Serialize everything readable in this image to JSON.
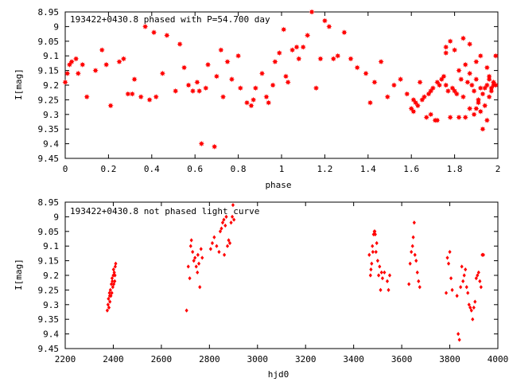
{
  "chart_data": [
    {
      "type": "scatter",
      "title": "193422+0430.8 phased with P=54.700 day",
      "xlabel": "phase",
      "ylabel": "I[mag]",
      "xlim": [
        0,
        2
      ],
      "ylim": [
        8.95,
        9.45
      ],
      "y_inverted": true,
      "marker": "filled-star",
      "color": "#ff0000",
      "xticks": [
        "0",
        "0.2",
        "0.4",
        "0.6",
        "0.8",
        "1",
        "1.2",
        "1.4",
        "1.6",
        "1.8",
        "2"
      ],
      "yticks": [
        "8.95",
        "9",
        "9.05",
        "9.1",
        "9.15",
        "9.2",
        "9.25",
        "9.3",
        "9.35",
        "9.4",
        "9.45"
      ],
      "points": [
        [
          0.0,
          9.19
        ],
        [
          0.01,
          9.16
        ],
        [
          0.02,
          9.13
        ],
        [
          0.03,
          9.12
        ],
        [
          0.05,
          9.11
        ],
        [
          0.06,
          9.16
        ],
        [
          0.08,
          9.13
        ],
        [
          0.1,
          9.24
        ],
        [
          0.14,
          9.15
        ],
        [
          0.17,
          9.08
        ],
        [
          0.19,
          9.13
        ],
        [
          0.21,
          9.27
        ],
        [
          0.25,
          9.12
        ],
        [
          0.27,
          9.11
        ],
        [
          0.29,
          9.23
        ],
        [
          0.31,
          9.23
        ],
        [
          0.32,
          9.18
        ],
        [
          0.35,
          9.24
        ],
        [
          0.37,
          9.0
        ],
        [
          0.39,
          9.25
        ],
        [
          0.41,
          9.02
        ],
        [
          0.42,
          9.24
        ],
        [
          0.45,
          9.16
        ],
        [
          0.47,
          9.03
        ],
        [
          0.51,
          9.22
        ],
        [
          0.53,
          9.06
        ],
        [
          0.55,
          9.14
        ],
        [
          0.57,
          9.2
        ],
        [
          0.59,
          9.22
        ],
        [
          0.61,
          9.19
        ],
        [
          0.62,
          9.22
        ],
        [
          0.63,
          9.4
        ],
        [
          0.65,
          9.21
        ],
        [
          0.66,
          9.13
        ],
        [
          0.69,
          9.41
        ],
        [
          0.7,
          9.17
        ],
        [
          0.72,
          9.08
        ],
        [
          0.73,
          9.24
        ],
        [
          0.75,
          9.12
        ],
        [
          0.77,
          9.18
        ],
        [
          0.8,
          9.1
        ],
        [
          0.81,
          9.21
        ],
        [
          0.84,
          9.26
        ],
        [
          0.86,
          9.27
        ],
        [
          0.87,
          9.25
        ],
        [
          0.88,
          9.21
        ],
        [
          0.91,
          9.16
        ],
        [
          0.93,
          9.24
        ],
        [
          0.94,
          9.26
        ],
        [
          0.96,
          9.2
        ],
        [
          0.97,
          9.12
        ],
        [
          0.99,
          9.09
        ],
        [
          1.01,
          9.01
        ],
        [
          1.02,
          9.17
        ],
        [
          1.03,
          9.19
        ],
        [
          1.05,
          9.08
        ],
        [
          1.07,
          9.07
        ],
        [
          1.08,
          9.11
        ],
        [
          1.1,
          9.07
        ],
        [
          1.12,
          9.03
        ],
        [
          1.14,
          8.95
        ],
        [
          1.16,
          9.21
        ],
        [
          1.18,
          9.11
        ],
        [
          1.2,
          8.98
        ],
        [
          1.22,
          9.0
        ],
        [
          1.24,
          9.11
        ],
        [
          1.26,
          9.1
        ],
        [
          1.29,
          9.02
        ],
        [
          1.32,
          9.11
        ],
        [
          1.35,
          9.14
        ],
        [
          1.39,
          9.16
        ],
        [
          1.41,
          9.26
        ],
        [
          1.43,
          9.19
        ],
        [
          1.46,
          9.12
        ],
        [
          1.49,
          9.24
        ],
        [
          1.52,
          9.2
        ],
        [
          1.55,
          9.18
        ],
        [
          1.58,
          9.23
        ],
        [
          1.61,
          9.25
        ],
        [
          1.64,
          9.19
        ],
        [
          1.67,
          9.31
        ],
        [
          1.69,
          9.3
        ],
        [
          1.71,
          9.32
        ],
        [
          1.72,
          9.32
        ],
        [
          1.74,
          9.18
        ],
        [
          1.76,
          9.09
        ],
        [
          1.78,
          9.31
        ],
        [
          1.8,
          9.08
        ],
        [
          1.82,
          9.31
        ],
        [
          1.83,
          9.18
        ],
        [
          1.85,
          9.31
        ],
        [
          1.87,
          9.28
        ],
        [
          1.89,
          9.3
        ],
        [
          1.9,
          9.28
        ],
        [
          1.91,
          9.26
        ],
        [
          1.92,
          9.29
        ],
        [
          1.93,
          9.35
        ],
        [
          1.94,
          9.27
        ],
        [
          1.95,
          9.32
        ],
        [
          1.96,
          9.24
        ],
        [
          1.97,
          9.22
        ],
        [
          1.98,
          9.2
        ],
        [
          1.99,
          9.1
        ],
        [
          1.6,
          9.28
        ],
        [
          1.61,
          9.29
        ],
        [
          1.62,
          9.26
        ],
        [
          1.63,
          9.27
        ],
        [
          1.65,
          9.25
        ],
        [
          1.66,
          9.24
        ],
        [
          1.68,
          9.23
        ],
        [
          1.69,
          9.22
        ],
        [
          1.7,
          9.21
        ],
        [
          1.72,
          9.19
        ],
        [
          1.73,
          9.2
        ],
        [
          1.75,
          9.17
        ],
        [
          1.76,
          9.2
        ],
        [
          1.77,
          9.22
        ],
        [
          1.79,
          9.21
        ],
        [
          1.8,
          9.22
        ],
        [
          1.81,
          9.23
        ],
        [
          1.82,
          9.15
        ],
        [
          1.84,
          9.24
        ],
        [
          1.85,
          9.13
        ],
        [
          1.86,
          9.19
        ],
        [
          1.87,
          9.16
        ],
        [
          1.88,
          9.2
        ],
        [
          1.89,
          9.22
        ],
        [
          1.9,
          9.18
        ],
        [
          1.91,
          9.25
        ],
        [
          1.92,
          9.21
        ],
        [
          1.93,
          9.23
        ],
        [
          1.94,
          9.21
        ],
        [
          1.95,
          9.2
        ],
        [
          1.96,
          9.18
        ],
        [
          1.97,
          9.21
        ],
        [
          1.98,
          9.19
        ],
        [
          1.99,
          9.2
        ],
        [
          1.84,
          9.04
        ],
        [
          1.87,
          9.06
        ],
        [
          1.92,
          9.1
        ],
        [
          1.9,
          9.12
        ],
        [
          1.95,
          9.14
        ],
        [
          1.96,
          9.17
        ],
        [
          1.78,
          9.05
        ],
        [
          1.76,
          9.07
        ]
      ]
    },
    {
      "type": "scatter",
      "title": "193422+0430.8 not phased light curve",
      "xlabel": "hjd0",
      "ylabel": "I[mag]",
      "xlim": [
        2200,
        4000
      ],
      "ylim": [
        8.95,
        9.45
      ],
      "y_inverted": true,
      "marker": "filled-diamond",
      "color": "#ff0000",
      "xticks": [
        "2200",
        "2400",
        "2600",
        "2800",
        "3000",
        "3200",
        "3400",
        "3600",
        "3800",
        "4000"
      ],
      "yticks": [
        "8.95",
        "9",
        "9.05",
        "9.1",
        "9.15",
        "9.2",
        "9.25",
        "9.3",
        "9.35",
        "9.4",
        "9.45"
      ],
      "points": [
        [
          2375,
          9.32
        ],
        [
          2378,
          9.3
        ],
        [
          2380,
          9.28
        ],
        [
          2382,
          9.31
        ],
        [
          2384,
          9.26
        ],
        [
          2386,
          9.29
        ],
        [
          2388,
          9.25
        ],
        [
          2390,
          9.27
        ],
        [
          2392,
          9.23
        ],
        [
          2394,
          9.26
        ],
        [
          2396,
          9.22
        ],
        [
          2398,
          9.24
        ],
        [
          2400,
          9.2
        ],
        [
          2402,
          9.23
        ],
        [
          2404,
          9.19
        ],
        [
          2406,
          9.22
        ],
        [
          2408,
          9.17
        ],
        [
          2410,
          9.16
        ],
        [
          2385,
          9.27
        ],
        [
          2395,
          9.21
        ],
        [
          2401,
          9.18
        ],
        [
          2407,
          9.2
        ],
        [
          2705,
          9.32
        ],
        [
          2712,
          9.17
        ],
        [
          2718,
          9.21
        ],
        [
          2722,
          9.1
        ],
        [
          2725,
          9.08
        ],
        [
          2730,
          9.12
        ],
        [
          2735,
          9.15
        ],
        [
          2740,
          9.14
        ],
        [
          2745,
          9.17
        ],
        [
          2750,
          9.19
        ],
        [
          2752,
          9.13
        ],
        [
          2756,
          9.16
        ],
        [
          2760,
          9.24
        ],
        [
          2765,
          9.11
        ],
        [
          2770,
          9.14
        ],
        [
          2805,
          9.11
        ],
        [
          2812,
          9.09
        ],
        [
          2820,
          9.07
        ],
        [
          2830,
          9.1
        ],
        [
          2840,
          9.12
        ],
        [
          2845,
          9.05
        ],
        [
          2850,
          9.04
        ],
        [
          2855,
          9.02
        ],
        [
          2860,
          9.01
        ],
        [
          2862,
          9.13
        ],
        [
          2866,
          9.03
        ],
        [
          2870,
          9.0
        ],
        [
          2875,
          9.1
        ],
        [
          2880,
          9.08
        ],
        [
          2885,
          9.09
        ],
        [
          2890,
          9.02
        ],
        [
          2895,
          9.0
        ],
        [
          2898,
          8.96
        ],
        [
          2902,
          9.01
        ],
        [
          3465,
          9.13
        ],
        [
          3470,
          9.2
        ],
        [
          3472,
          9.18
        ],
        [
          3475,
          9.16
        ],
        [
          3478,
          9.1
        ],
        [
          3480,
          9.12
        ],
        [
          3483,
          9.06
        ],
        [
          3486,
          9.05
        ],
        [
          3488,
          9.05
        ],
        [
          3490,
          9.06
        ],
        [
          3493,
          9.12
        ],
        [
          3496,
          9.09
        ],
        [
          3500,
          9.15
        ],
        [
          3504,
          9.2
        ],
        [
          3508,
          9.17
        ],
        [
          3512,
          9.25
        ],
        [
          3516,
          9.19
        ],
        [
          3520,
          9.21
        ],
        [
          3528,
          9.19
        ],
        [
          3540,
          9.22
        ],
        [
          3545,
          9.25
        ],
        [
          3550,
          9.2
        ],
        [
          3630,
          9.23
        ],
        [
          3635,
          9.16
        ],
        [
          3640,
          9.12
        ],
        [
          3645,
          9.1
        ],
        [
          3648,
          9.07
        ],
        [
          3652,
          9.02
        ],
        [
          3655,
          9.13
        ],
        [
          3660,
          9.15
        ],
        [
          3665,
          9.19
        ],
        [
          3670,
          9.22
        ],
        [
          3675,
          9.24
        ],
        [
          3785,
          9.26
        ],
        [
          3790,
          9.14
        ],
        [
          3795,
          9.16
        ],
        [
          3800,
          9.12
        ],
        [
          3805,
          9.21
        ],
        [
          3810,
          9.25
        ],
        [
          3830,
          9.27
        ],
        [
          3835,
          9.4
        ],
        [
          3840,
          9.42
        ],
        [
          3845,
          9.24
        ],
        [
          3850,
          9.17
        ],
        [
          3855,
          9.22
        ],
        [
          3860,
          9.2
        ],
        [
          3865,
          9.18
        ],
        [
          3870,
          9.24
        ],
        [
          3875,
          9.26
        ],
        [
          3880,
          9.3
        ],
        [
          3885,
          9.31
        ],
        [
          3890,
          9.32
        ],
        [
          3895,
          9.35
        ],
        [
          3900,
          9.31
        ],
        [
          3905,
          9.29
        ],
        [
          3910,
          9.21
        ],
        [
          3915,
          9.2
        ],
        [
          3920,
          9.19
        ],
        [
          3925,
          9.22
        ],
        [
          3930,
          9.24
        ],
        [
          3935,
          9.13
        ],
        [
          3940,
          9.13
        ]
      ]
    }
  ]
}
